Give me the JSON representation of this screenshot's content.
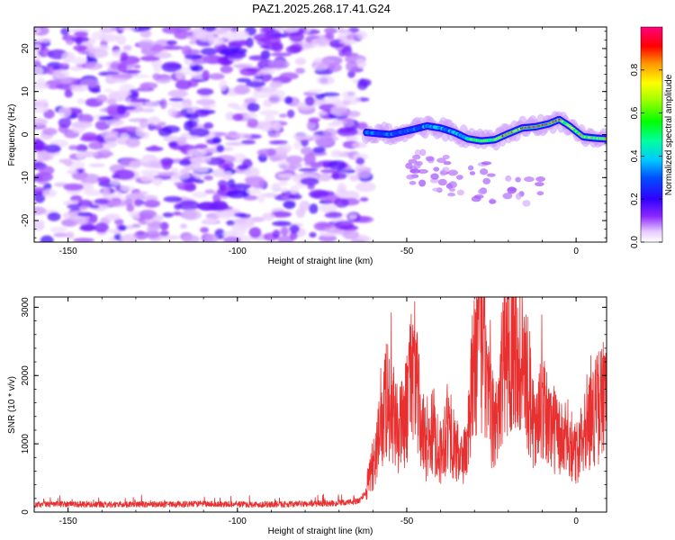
{
  "title": "PAZ1.2025.268.17.41.G24",
  "chart_data": [
    {
      "type": "heatmap",
      "title": "PAZ1.2025.268.17.41.G24",
      "xlabel": "Height of straight line (km)",
      "ylabel": "Frequency (Hz)",
      "xlim": [
        -160,
        9
      ],
      "ylim": [
        -25,
        25
      ],
      "xticks": [
        -150,
        -100,
        -50,
        0
      ],
      "yticks": [
        -20,
        -10,
        0,
        10,
        20
      ],
      "noise_region_x": [
        -160,
        -62
      ],
      "ridge": {
        "description_x": [
          -62,
          -58,
          -55,
          -52,
          -48,
          -44,
          -40,
          -36,
          -32,
          -28,
          -24,
          -20,
          -16,
          -12,
          -8,
          -5,
          -2,
          2,
          5,
          9
        ],
        "frequency_hz": [
          0.5,
          0.2,
          0.0,
          0.5,
          1.2,
          2.0,
          1.5,
          0.5,
          -1.0,
          -1.5,
          -1.2,
          0.2,
          1.5,
          1.8,
          2.5,
          3.5,
          2.0,
          -0.5,
          -0.8,
          -1.0
        ]
      },
      "colorbar": {
        "label": "Normalized spectral amplitude",
        "range": [
          0.0,
          1.0
        ],
        "ticks": [
          0.0,
          0.2,
          0.4,
          0.6,
          0.8
        ],
        "tick_labels": [
          "0.0",
          "0.2",
          "0.4",
          "0.6",
          "0.8"
        ]
      }
    },
    {
      "type": "line",
      "xlabel": "Height of straight line (km)",
      "ylabel": "SNR (10 * v/v)",
      "xlim": [
        -160,
        9
      ],
      "ylim": [
        0,
        3150
      ],
      "xticks": [
        -150,
        -100,
        -50,
        0
      ],
      "yticks": [
        0,
        1000,
        2000,
        3000
      ],
      "series": [
        {
          "name": "SNR",
          "color": "#e83030",
          "x": [
            -160,
            -150,
            -140,
            -130,
            -120,
            -110,
            -100,
            -90,
            -80,
            -70,
            -64,
            -62,
            -60,
            -58,
            -56,
            -54,
            -52,
            -50,
            -48,
            -46,
            -44,
            -42,
            -40,
            -38,
            -36,
            -34,
            -32,
            -30,
            -28,
            -26,
            -24,
            -22,
            -20,
            -18,
            -16,
            -14,
            -12,
            -10,
            -8,
            -6,
            -4,
            -2,
            0,
            2,
            4,
            6,
            8,
            9
          ],
          "y": [
            110,
            120,
            110,
            115,
            110,
            120,
            115,
            110,
            120,
            130,
            160,
            300,
            700,
            1100,
            1700,
            1400,
            1200,
            1500,
            2300,
            1300,
            950,
            1200,
            850,
            1300,
            950,
            750,
            1000,
            2300,
            2600,
            1600,
            1200,
            2000,
            2500,
            2750,
            2200,
            1800,
            1200,
            1500,
            1300,
            1200,
            1000,
            1100,
            800,
            1300,
            1350,
            1500,
            1650,
            1500
          ]
        }
      ]
    }
  ]
}
